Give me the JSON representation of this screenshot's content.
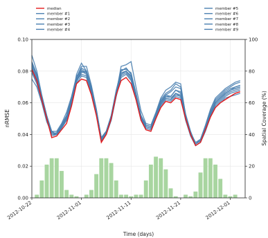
{
  "chart_data": {
    "type": "line",
    "xlabel": "Time (days)",
    "ylabel": "nRMSE",
    "y2label": "Spatial Coverage (%)",
    "ylim": [
      0.0,
      0.1
    ],
    "y2lim": [
      0,
      100
    ],
    "yticks": [
      "0.00",
      "0.02",
      "0.04",
      "0.06",
      "0.08",
      "0.10"
    ],
    "y2ticks": [
      "0",
      "20",
      "40",
      "60",
      "80",
      "100"
    ],
    "xlim": [
      "2012-10-22",
      "2012-12-04"
    ],
    "xticks": [
      {
        "date": "2012-10-22",
        "label": "2012-10-22"
      },
      {
        "date": "2012-11-01",
        "label": "2012-11-01"
      },
      {
        "date": "2012-11-11",
        "label": "2012-11-11"
      },
      {
        "date": "2012-11-21",
        "label": "2012-11-21"
      },
      {
        "date": "2012-12-01",
        "label": "2012-12-01"
      }
    ],
    "grid": true,
    "legend_placement": "above plot, two groups",
    "colors": {
      "median": "#e41a1c",
      "member": "#4a7fb0",
      "coverage": "#a8d5a0"
    },
    "x": [
      "2012-10-22",
      "2012-10-23",
      "2012-10-24",
      "2012-10-25",
      "2012-10-26",
      "2012-10-27",
      "2012-10-28",
      "2012-10-29",
      "2012-10-30",
      "2012-10-31",
      "2012-11-01",
      "2012-11-02",
      "2012-11-03",
      "2012-11-04",
      "2012-11-05",
      "2012-11-06",
      "2012-11-07",
      "2012-11-08",
      "2012-11-09",
      "2012-11-10",
      "2012-11-11",
      "2012-11-12",
      "2012-11-13",
      "2012-11-14",
      "2012-11-15",
      "2012-11-16",
      "2012-11-17",
      "2012-11-18",
      "2012-11-19",
      "2012-11-20",
      "2012-11-21",
      "2012-11-22",
      "2012-11-23",
      "2012-11-24",
      "2012-11-25",
      "2012-11-26",
      "2012-11-27",
      "2012-11-28",
      "2012-11-29",
      "2012-11-30",
      "2012-12-01",
      "2012-12-02",
      "2012-12-03"
    ],
    "series": [
      {
        "name": "median",
        "values": [
          0.081,
          0.074,
          0.062,
          0.05,
          0.038,
          0.039,
          0.043,
          0.047,
          0.058,
          0.072,
          0.075,
          0.074,
          0.065,
          0.052,
          0.035,
          0.04,
          0.05,
          0.065,
          0.074,
          0.076,
          0.072,
          0.062,
          0.049,
          0.043,
          0.042,
          0.05,
          0.057,
          0.061,
          0.06,
          0.063,
          0.062,
          0.05,
          0.04,
          0.033,
          0.035,
          0.043,
          0.051,
          0.057,
          0.06,
          0.062,
          0.064,
          0.066,
          0.067
        ]
      },
      {
        "name": "member #1",
        "values": [
          0.09,
          0.08,
          0.065,
          0.052,
          0.042,
          0.04,
          0.045,
          0.05,
          0.06,
          0.078,
          0.085,
          0.08,
          0.068,
          0.055,
          0.038,
          0.042,
          0.052,
          0.068,
          0.08,
          0.082,
          0.078,
          0.065,
          0.052,
          0.046,
          0.045,
          0.053,
          0.062,
          0.066,
          0.068,
          0.072,
          0.07,
          0.053,
          0.042,
          0.034,
          0.037,
          0.045,
          0.055,
          0.062,
          0.065,
          0.068,
          0.07,
          0.072,
          0.073
        ]
      },
      {
        "name": "member #2",
        "values": [
          0.086,
          0.078,
          0.064,
          0.051,
          0.041,
          0.041,
          0.046,
          0.052,
          0.062,
          0.075,
          0.082,
          0.08,
          0.07,
          0.056,
          0.037,
          0.041,
          0.051,
          0.066,
          0.078,
          0.08,
          0.076,
          0.064,
          0.05,
          0.045,
          0.044,
          0.052,
          0.06,
          0.064,
          0.063,
          0.066,
          0.065,
          0.051,
          0.041,
          0.034,
          0.036,
          0.044,
          0.053,
          0.06,
          0.063,
          0.066,
          0.068,
          0.069,
          0.07
        ]
      },
      {
        "name": "member #3",
        "values": [
          0.079,
          0.072,
          0.061,
          0.049,
          0.04,
          0.04,
          0.044,
          0.049,
          0.059,
          0.074,
          0.078,
          0.077,
          0.066,
          0.053,
          0.036,
          0.04,
          0.049,
          0.064,
          0.077,
          0.079,
          0.075,
          0.063,
          0.05,
          0.044,
          0.043,
          0.051,
          0.059,
          0.063,
          0.062,
          0.065,
          0.064,
          0.05,
          0.04,
          0.033,
          0.035,
          0.043,
          0.052,
          0.058,
          0.061,
          0.064,
          0.066,
          0.067,
          0.068
        ]
      },
      {
        "name": "member #4",
        "values": [
          0.084,
          0.077,
          0.063,
          0.051,
          0.042,
          0.042,
          0.047,
          0.054,
          0.064,
          0.077,
          0.08,
          0.079,
          0.068,
          0.055,
          0.037,
          0.041,
          0.051,
          0.066,
          0.083,
          0.084,
          0.086,
          0.07,
          0.055,
          0.047,
          0.046,
          0.054,
          0.063,
          0.068,
          0.07,
          0.073,
          0.072,
          0.052,
          0.041,
          0.035,
          0.037,
          0.046,
          0.056,
          0.063,
          0.066,
          0.069,
          0.071,
          0.073,
          0.074
        ]
      },
      {
        "name": "member #5",
        "values": [
          0.082,
          0.075,
          0.062,
          0.05,
          0.04,
          0.04,
          0.045,
          0.05,
          0.06,
          0.073,
          0.08,
          0.078,
          0.067,
          0.054,
          0.036,
          0.04,
          0.05,
          0.065,
          0.078,
          0.08,
          0.077,
          0.064,
          0.05,
          0.044,
          0.043,
          0.051,
          0.059,
          0.063,
          0.062,
          0.066,
          0.064,
          0.05,
          0.04,
          0.033,
          0.035,
          0.043,
          0.052,
          0.059,
          0.062,
          0.065,
          0.067,
          0.068,
          0.069
        ]
      },
      {
        "name": "member #6",
        "values": [
          0.08,
          0.073,
          0.061,
          0.049,
          0.039,
          0.04,
          0.044,
          0.049,
          0.059,
          0.072,
          0.077,
          0.076,
          0.066,
          0.053,
          0.036,
          0.04,
          0.049,
          0.064,
          0.076,
          0.078,
          0.074,
          0.062,
          0.049,
          0.043,
          0.042,
          0.05,
          0.058,
          0.062,
          0.061,
          0.064,
          0.063,
          0.049,
          0.039,
          0.033,
          0.035,
          0.042,
          0.051,
          0.057,
          0.06,
          0.063,
          0.064,
          0.065,
          0.066
        ]
      },
      {
        "name": "member #7",
        "values": [
          0.075,
          0.07,
          0.06,
          0.048,
          0.041,
          0.041,
          0.045,
          0.051,
          0.061,
          0.074,
          0.079,
          0.08,
          0.069,
          0.055,
          0.038,
          0.042,
          0.051,
          0.066,
          0.08,
          0.082,
          0.078,
          0.066,
          0.052,
          0.046,
          0.045,
          0.053,
          0.061,
          0.065,
          0.067,
          0.07,
          0.069,
          0.052,
          0.041,
          0.034,
          0.036,
          0.045,
          0.054,
          0.06,
          0.063,
          0.066,
          0.068,
          0.07,
          0.071
        ]
      },
      {
        "name": "member #8",
        "values": [
          0.085,
          0.078,
          0.064,
          0.052,
          0.041,
          0.041,
          0.046,
          0.052,
          0.063,
          0.076,
          0.083,
          0.083,
          0.071,
          0.056,
          0.038,
          0.042,
          0.052,
          0.067,
          0.081,
          0.081,
          0.079,
          0.066,
          0.052,
          0.045,
          0.044,
          0.052,
          0.061,
          0.065,
          0.064,
          0.068,
          0.066,
          0.051,
          0.041,
          0.034,
          0.036,
          0.044,
          0.053,
          0.061,
          0.064,
          0.067,
          0.069,
          0.07,
          0.071
        ]
      },
      {
        "name": "member #9",
        "values": [
          0.083,
          0.076,
          0.063,
          0.05,
          0.041,
          0.04,
          0.045,
          0.051,
          0.061,
          0.074,
          0.081,
          0.079,
          0.068,
          0.054,
          0.037,
          0.041,
          0.05,
          0.065,
          0.079,
          0.08,
          0.077,
          0.065,
          0.051,
          0.045,
          0.044,
          0.052,
          0.06,
          0.064,
          0.064,
          0.068,
          0.067,
          0.051,
          0.041,
          0.034,
          0.036,
          0.044,
          0.053,
          0.06,
          0.063,
          0.066,
          0.068,
          0.069,
          0.07
        ]
      }
    ],
    "coverage": {
      "x": [
        "2012-10-23",
        "2012-10-24",
        "2012-10-25",
        "2012-10-26",
        "2012-10-27",
        "2012-10-28",
        "2012-10-29",
        "2012-10-30",
        "2012-10-31",
        "2012-11-01",
        "2012-11-02",
        "2012-11-03",
        "2012-11-04",
        "2012-11-05",
        "2012-11-06",
        "2012-11-07",
        "2012-11-08",
        "2012-11-09",
        "2012-11-10",
        "2012-11-11",
        "2012-11-12",
        "2012-11-13",
        "2012-11-14",
        "2012-11-15",
        "2012-11-16",
        "2012-11-17",
        "2012-11-18",
        "2012-11-19",
        "2012-11-20",
        "2012-11-21",
        "2012-11-22",
        "2012-11-23",
        "2012-11-24",
        "2012-11-25",
        "2012-11-26",
        "2012-11-27",
        "2012-11-28",
        "2012-11-29",
        "2012-11-30",
        "2012-12-01",
        "2012-12-02",
        "2012-12-03"
      ],
      "values": [
        2,
        11,
        21,
        25,
        25,
        17,
        5,
        2,
        1,
        0,
        2,
        5,
        15,
        25,
        25,
        22,
        11,
        2,
        2,
        1,
        2,
        2,
        11,
        21,
        26,
        25,
        18,
        6,
        1,
        0,
        2,
        1,
        4,
        16,
        25,
        25,
        21,
        12,
        2,
        1,
        2,
        0
      ]
    }
  }
}
